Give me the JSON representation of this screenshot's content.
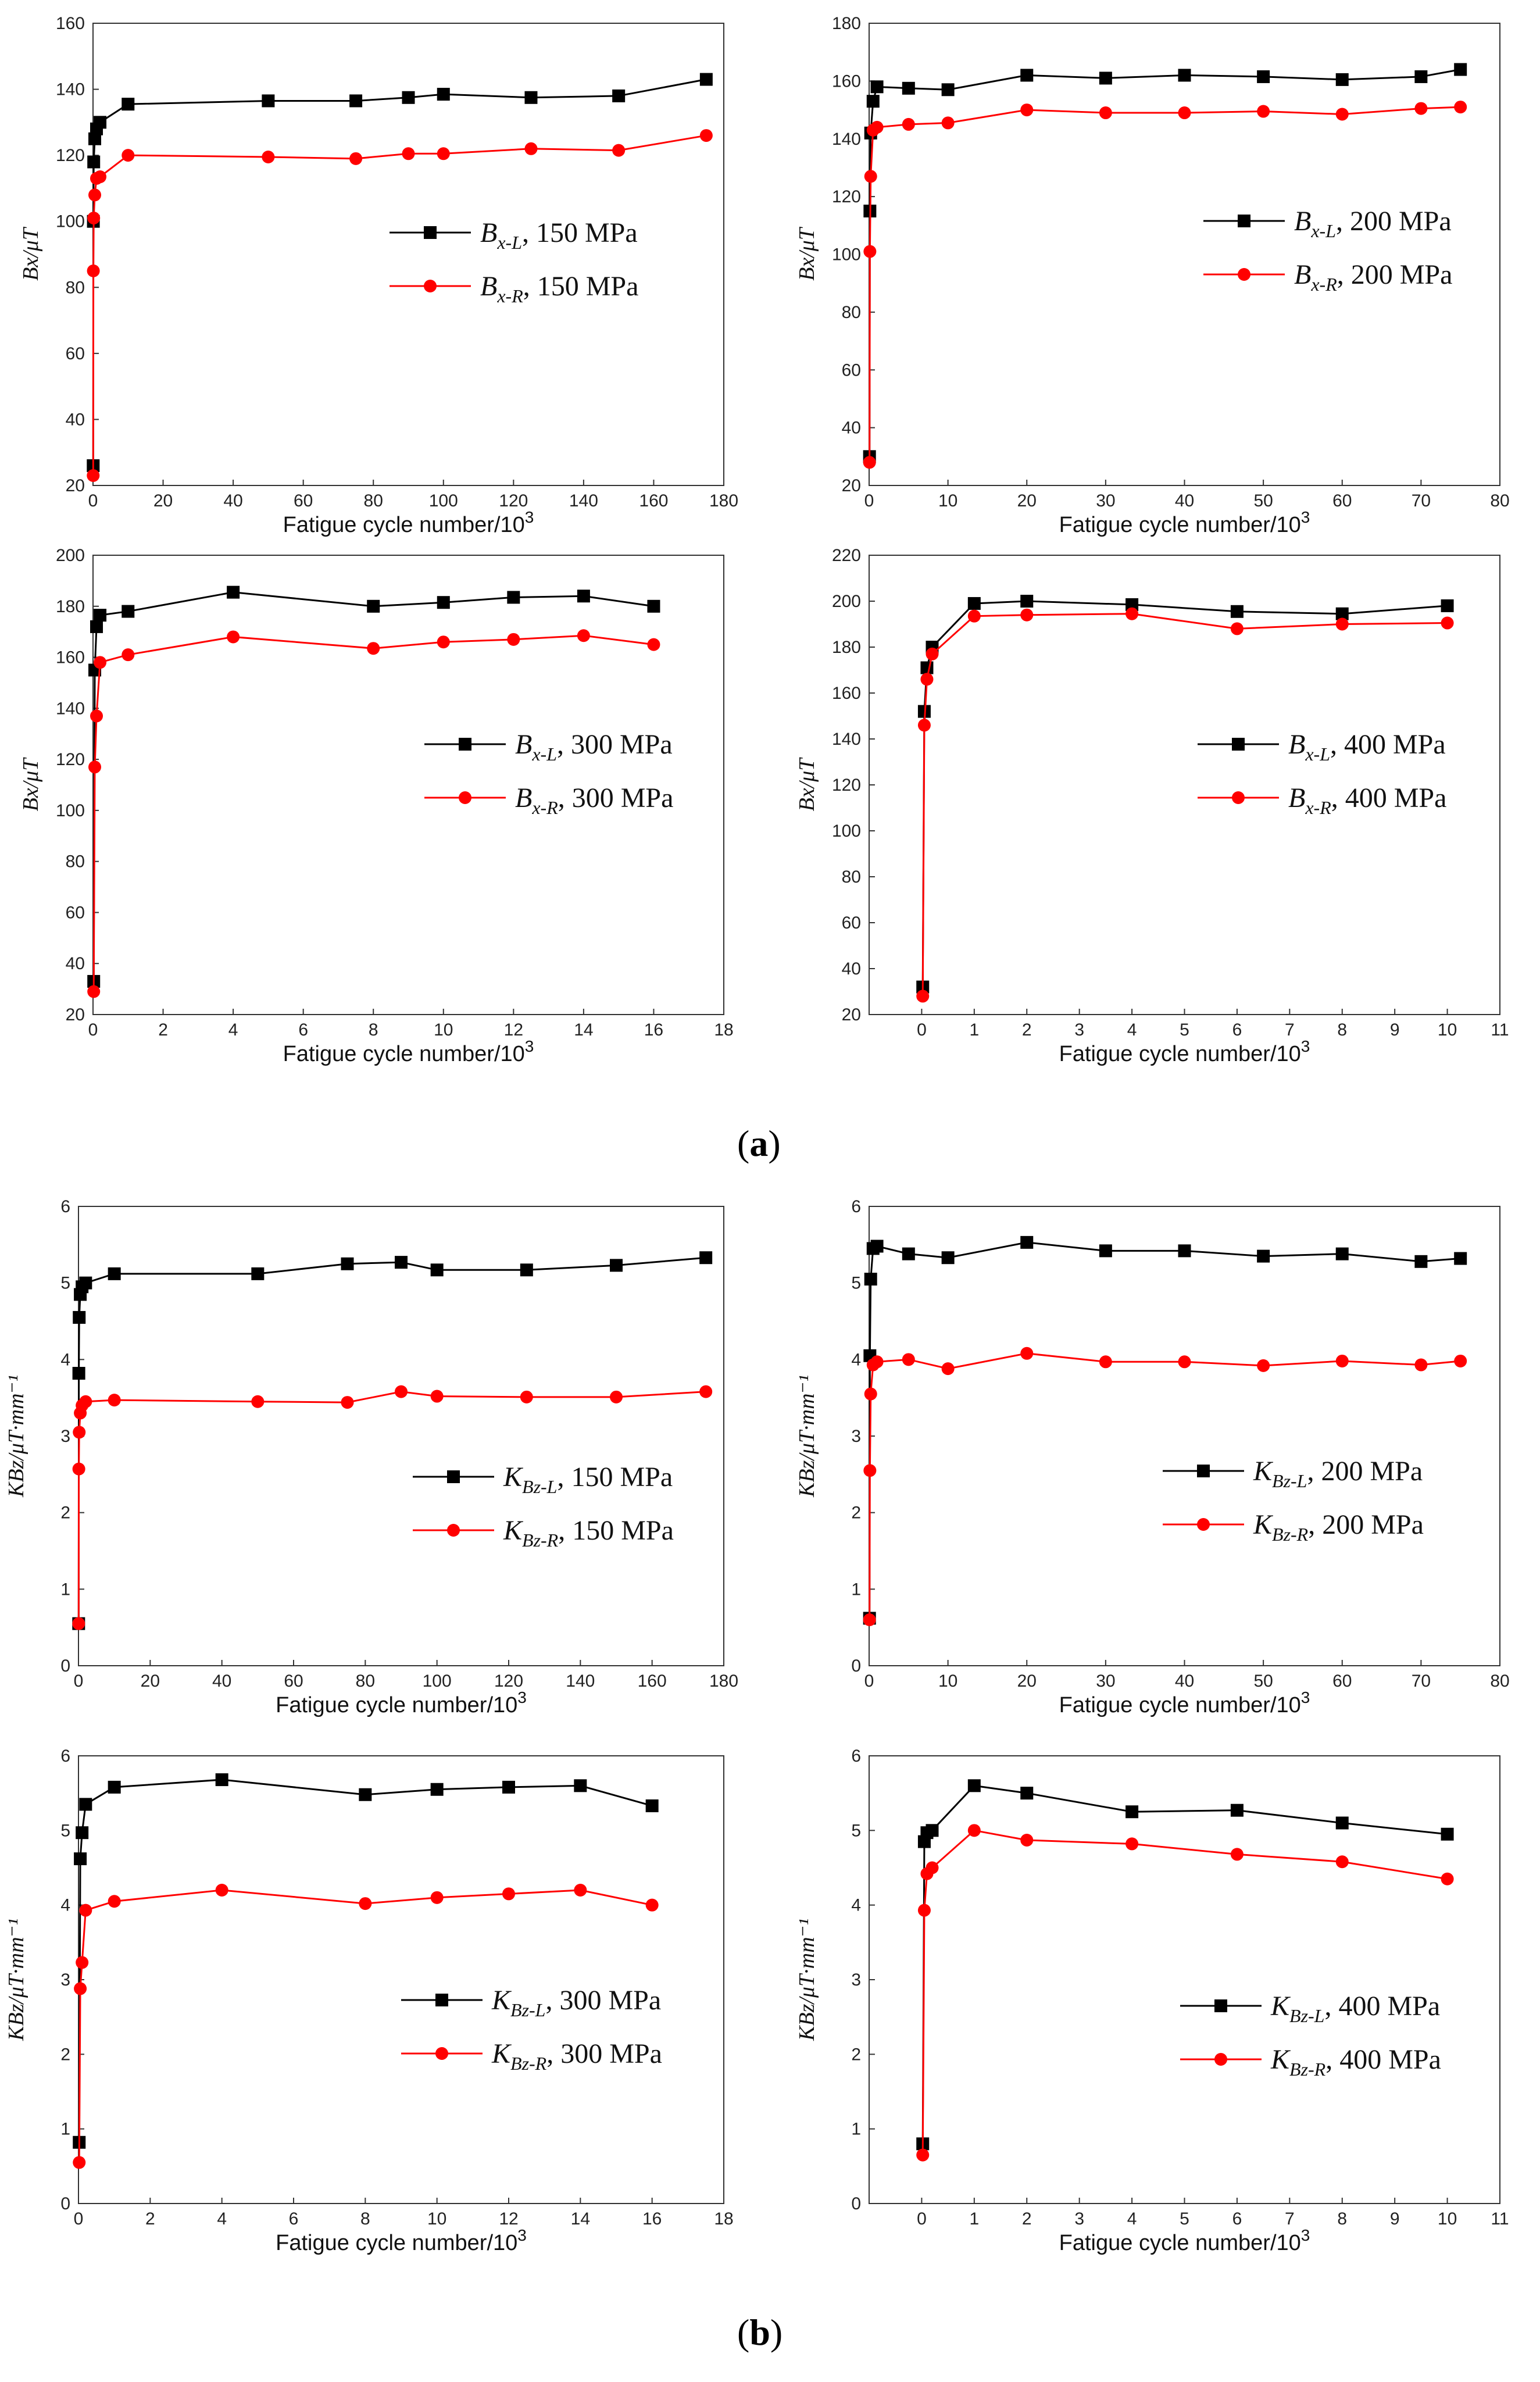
{
  "panel_labels": {
    "a": "a",
    "b": "b"
  },
  "chart_data": [
    {
      "type": "line",
      "xlabel": "Fatigue cycle number/10",
      "xlabel_sup": "3",
      "ylabel": "Bx/μT",
      "xlim": [
        0,
        180
      ],
      "xticks": [
        0,
        20,
        40,
        60,
        80,
        100,
        120,
        140,
        160,
        180
      ],
      "ylim": [
        20,
        160
      ],
      "yticks": [
        20,
        40,
        60,
        80,
        100,
        120,
        140,
        160
      ],
      "series": [
        {
          "name": "Bx-L, 150 MPa",
          "sym": "B",
          "sub": "x-L",
          "rest": ", 150 MPa",
          "color": "#000000",
          "marker": "square",
          "x": [
            0.05,
            0.1,
            0.2,
            0.5,
            1,
            2,
            10,
            50,
            75,
            90,
            100,
            125,
            150,
            175
          ],
          "y": [
            26,
            100,
            118,
            125,
            128,
            130,
            135.5,
            136.5,
            136.5,
            137.5,
            138.5,
            137.5,
            138,
            143
          ]
        },
        {
          "name": "Bx-R, 150 MPa",
          "sym": "B",
          "sub": "x-R",
          "rest": ", 150 MPa",
          "color": "#ff0000",
          "marker": "circle",
          "x": [
            0.05,
            0.1,
            0.2,
            0.5,
            1,
            2,
            10,
            50,
            75,
            90,
            100,
            125,
            150,
            175
          ],
          "y": [
            23,
            85,
            101,
            108,
            113,
            113.5,
            120,
            119.5,
            119,
            120.5,
            120.5,
            122,
            121.5,
            126
          ]
        }
      ],
      "legend": "right"
    },
    {
      "type": "line",
      "xlabel": "Fatigue cycle number/10",
      "xlabel_sup": "3",
      "ylabel": "Bx/μT",
      "xlim": [
        0,
        80
      ],
      "xticks": [
        0,
        10,
        20,
        30,
        40,
        50,
        60,
        70,
        80
      ],
      "ylim": [
        20,
        180
      ],
      "yticks": [
        20,
        40,
        60,
        80,
        100,
        120,
        140,
        160,
        180
      ],
      "series": [
        {
          "name": "Bx-L, 200 MPa",
          "sym": "B",
          "sub": "x-L",
          "rest": ", 200 MPa",
          "color": "#000000",
          "marker": "square",
          "x": [
            0.05,
            0.1,
            0.2,
            0.5,
            1,
            5,
            10,
            20,
            30,
            40,
            50,
            60,
            70,
            75
          ],
          "y": [
            30,
            115,
            142,
            153,
            158,
            157.5,
            157,
            162,
            161,
            162,
            161.5,
            160.5,
            161.5,
            164
          ]
        },
        {
          "name": "Bx-R, 200 MPa",
          "sym": "B",
          "sub": "x-R",
          "rest": ", 200 MPa",
          "color": "#ff0000",
          "marker": "circle",
          "x": [
            0.05,
            0.1,
            0.2,
            0.5,
            1,
            5,
            10,
            20,
            30,
            40,
            50,
            60,
            70,
            75
          ],
          "y": [
            28,
            101,
            127,
            143,
            144,
            145,
            145.5,
            150,
            149,
            149,
            149.5,
            148.5,
            150.5,
            151
          ]
        }
      ],
      "legend": "right"
    },
    {
      "type": "line",
      "xlabel": "Fatigue cycle number/10",
      "xlabel_sup": "3",
      "ylabel": "Bx/μT",
      "xlim": [
        0,
        18
      ],
      "xticks": [
        0,
        2,
        4,
        6,
        8,
        10,
        12,
        14,
        16,
        18
      ],
      "ylim": [
        20,
        200
      ],
      "yticks": [
        20,
        40,
        60,
        80,
        100,
        120,
        140,
        160,
        180,
        200
      ],
      "series": [
        {
          "name": "Bx-L, 300 MPa",
          "sym": "B",
          "sub": "x-L",
          "rest": ", 300 MPa",
          "color": "#000000",
          "marker": "square",
          "x": [
            0.02,
            0.05,
            0.1,
            0.2,
            1,
            4,
            8,
            10,
            12,
            14,
            16
          ],
          "y": [
            33,
            155,
            172,
            176.5,
            178,
            185.5,
            180,
            181.5,
            183.5,
            184,
            180
          ]
        },
        {
          "name": "Bx-R, 300 MPa",
          "sym": "B",
          "sub": "x-R",
          "rest": ", 300 MPa",
          "color": "#ff0000",
          "marker": "circle",
          "x": [
            0.02,
            0.05,
            0.1,
            0.2,
            1,
            4,
            8,
            10,
            12,
            14,
            16
          ],
          "y": [
            29,
            117,
            137,
            158,
            161,
            168,
            163.5,
            166,
            167,
            168.5,
            165
          ]
        }
      ],
      "legend": "right"
    },
    {
      "type": "line",
      "xlabel": "Fatigue cycle number/10",
      "xlabel_sup": "3",
      "ylabel": "Bx/μT",
      "xlim": [
        -1,
        11
      ],
      "xticks": [
        0,
        1,
        2,
        3,
        4,
        5,
        6,
        7,
        8,
        9,
        10,
        11
      ],
      "ylim": [
        20,
        220
      ],
      "yticks": [
        20,
        40,
        60,
        80,
        100,
        120,
        140,
        160,
        180,
        200,
        220
      ],
      "series": [
        {
          "name": "Bx-L, 400 MPa",
          "sym": "B",
          "sub": "x-L",
          "rest": ", 400 MPa",
          "color": "#000000",
          "marker": "square",
          "x": [
            0.02,
            0.05,
            0.1,
            0.2,
            1,
            2,
            4,
            6,
            8,
            10
          ],
          "y": [
            32,
            152,
            171,
            180,
            199,
            200,
            198.5,
            195.5,
            194.5,
            198
          ]
        },
        {
          "name": "Bx-R, 400 MPa",
          "sym": "B",
          "sub": "x-R",
          "rest": ", 400 MPa",
          "color": "#ff0000",
          "marker": "circle",
          "x": [
            0.02,
            0.05,
            0.1,
            0.2,
            1,
            2,
            4,
            6,
            8,
            10
          ],
          "y": [
            28,
            146,
            166,
            177,
            193.5,
            194,
            194.5,
            188,
            190,
            190.5
          ]
        }
      ],
      "legend": "right"
    },
    {
      "type": "line",
      "xlabel": "Fatigue cycle number/10",
      "xlabel_sup": "3",
      "ylabel": "KBz/μT·mm⁻¹",
      "xlim": [
        0,
        180
      ],
      "xticks": [
        0,
        20,
        40,
        60,
        80,
        100,
        120,
        140,
        160,
        180
      ],
      "ylim": [
        0,
        6
      ],
      "yticks": [
        0,
        1,
        2,
        3,
        4,
        5,
        6
      ],
      "series": [
        {
          "name": "KBz-L, 150 MPa",
          "sym": "K",
          "sub": "Bz-L",
          "rest": ", 150 MPa",
          "color": "#000000",
          "marker": "square",
          "x": [
            0.05,
            0.1,
            0.2,
            0.5,
            1,
            2,
            10,
            50,
            75,
            90,
            100,
            125,
            150,
            175
          ],
          "y": [
            0.55,
            3.82,
            4.55,
            4.85,
            4.95,
            5.0,
            5.12,
            5.12,
            5.25,
            5.27,
            5.17,
            5.17,
            5.23,
            5.33
          ]
        },
        {
          "name": "KBz-R, 150 MPa",
          "sym": "K",
          "sub": "Bz-R",
          "rest": ", 150 MPa",
          "color": "#ff0000",
          "marker": "circle",
          "x": [
            0.05,
            0.1,
            0.2,
            0.5,
            1,
            2,
            10,
            50,
            75,
            90,
            100,
            125,
            150,
            175
          ],
          "y": [
            0.55,
            2.57,
            3.05,
            3.3,
            3.4,
            3.45,
            3.47,
            3.45,
            3.44,
            3.58,
            3.52,
            3.51,
            3.51,
            3.58
          ]
        }
      ],
      "legend": "right"
    },
    {
      "type": "line",
      "xlabel": "Fatigue cycle number/10",
      "xlabel_sup": "3",
      "ylabel": "KBz/μT·mm⁻¹",
      "xlim": [
        0,
        80
      ],
      "xticks": [
        0,
        10,
        20,
        30,
        40,
        50,
        60,
        70,
        80
      ],
      "ylim": [
        0,
        6
      ],
      "yticks": [
        0,
        1,
        2,
        3,
        4,
        5,
        6
      ],
      "series": [
        {
          "name": "KBz-L, 200 MPa",
          "sym": "K",
          "sub": "Bz-L",
          "rest": ", 200 MPa",
          "color": "#000000",
          "marker": "square",
          "x": [
            0.05,
            0.1,
            0.2,
            0.5,
            1,
            5,
            10,
            20,
            30,
            40,
            50,
            60,
            70,
            75
          ],
          "y": [
            0.62,
            4.05,
            5.05,
            5.45,
            5.48,
            5.38,
            5.33,
            5.53,
            5.42,
            5.42,
            5.35,
            5.38,
            5.28,
            5.32
          ]
        },
        {
          "name": "KBz-R, 200 MPa",
          "sym": "K",
          "sub": "Bz-R",
          "rest": ", 200 MPa",
          "color": "#ff0000",
          "marker": "circle",
          "x": [
            0.05,
            0.1,
            0.2,
            0.5,
            1,
            5,
            10,
            20,
            30,
            40,
            50,
            60,
            70,
            75
          ],
          "y": [
            0.6,
            2.55,
            3.55,
            3.93,
            3.97,
            4.0,
            3.88,
            4.08,
            3.97,
            3.97,
            3.92,
            3.98,
            3.93,
            3.98
          ]
        }
      ],
      "legend": "right"
    },
    {
      "type": "line",
      "xlabel": "Fatigue cycle number/10",
      "xlabel_sup": "3",
      "ylabel": "KBz/μT·mm⁻¹",
      "xlim": [
        0,
        18
      ],
      "xticks": [
        0,
        2,
        4,
        6,
        8,
        10,
        12,
        14,
        16,
        18
      ],
      "ylim": [
        0,
        6
      ],
      "yticks": [
        0,
        1,
        2,
        3,
        4,
        5,
        6
      ],
      "series": [
        {
          "name": "KBz-L, 300 MPa",
          "sym": "K",
          "sub": "Bz-L",
          "rest": ", 300 MPa",
          "color": "#000000",
          "marker": "square",
          "x": [
            0.02,
            0.05,
            0.1,
            0.2,
            1,
            4,
            8,
            10,
            12,
            14,
            16
          ],
          "y": [
            0.82,
            4.62,
            4.97,
            5.35,
            5.58,
            5.68,
            5.48,
            5.55,
            5.58,
            5.6,
            5.33
          ]
        },
        {
          "name": "KBz-R, 300 MPa",
          "sym": "K",
          "sub": "Bz-R",
          "rest": ", 300 MPa",
          "color": "#ff0000",
          "marker": "circle",
          "x": [
            0.02,
            0.05,
            0.1,
            0.2,
            1,
            4,
            8,
            10,
            12,
            14,
            16
          ],
          "y": [
            0.55,
            2.88,
            3.23,
            3.93,
            4.05,
            4.2,
            4.02,
            4.1,
            4.15,
            4.2,
            4.0
          ]
        }
      ],
      "legend": "right"
    },
    {
      "type": "line",
      "xlabel": "Fatigue cycle number/10",
      "xlabel_sup": "3",
      "ylabel": "KBz/μT·mm⁻¹",
      "xlim": [
        -1,
        11
      ],
      "xticks": [
        0,
        1,
        2,
        3,
        4,
        5,
        6,
        7,
        8,
        9,
        10,
        11
      ],
      "ylim": [
        0,
        6
      ],
      "yticks": [
        0,
        1,
        2,
        3,
        4,
        5,
        6
      ],
      "series": [
        {
          "name": "KBz-L, 400 MPa",
          "sym": "K",
          "sub": "Bz-L",
          "rest": ", 400 MPa",
          "color": "#000000",
          "marker": "square",
          "x": [
            0.02,
            0.05,
            0.1,
            0.2,
            1,
            2,
            4,
            6,
            8,
            10
          ],
          "y": [
            0.8,
            4.85,
            4.97,
            5.0,
            5.6,
            5.5,
            5.25,
            5.27,
            5.1,
            4.95
          ]
        },
        {
          "name": "KBz-R, 400 MPa",
          "sym": "K",
          "sub": "Bz-R",
          "rest": ", 400 MPa",
          "color": "#ff0000",
          "marker": "circle",
          "x": [
            0.02,
            0.05,
            0.1,
            0.2,
            1,
            2,
            4,
            6,
            8,
            10
          ],
          "y": [
            0.65,
            3.93,
            4.42,
            4.5,
            5.0,
            4.87,
            4.82,
            4.68,
            4.58,
            4.35
          ]
        }
      ],
      "legend": "right"
    }
  ]
}
